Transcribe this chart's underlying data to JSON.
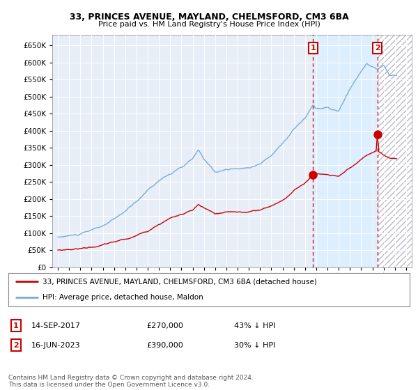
{
  "title1": "33, PRINCES AVENUE, MAYLAND, CHELMSFORD, CM3 6BA",
  "title2": "Price paid vs. HM Land Registry's House Price Index (HPI)",
  "legend_line1": "33, PRINCES AVENUE, MAYLAND, CHELMSFORD, CM3 6BA (detached house)",
  "legend_line2": "HPI: Average price, detached house, Maldon",
  "annotation1_date": "14-SEP-2017",
  "annotation1_price": "£270,000",
  "annotation1_note": "43% ↓ HPI",
  "annotation2_date": "16-JUN-2023",
  "annotation2_price": "£390,000",
  "annotation2_note": "30% ↓ HPI",
  "footer": "Contains HM Land Registry data © Crown copyright and database right 2024.\nThis data is licensed under the Open Government Licence v3.0.",
  "hpi_color": "#7aadd4",
  "price_color": "#cc0000",
  "annotation_color": "#cc0000",
  "shade_color": "#ddeeff",
  "plot_bg": "#e8eef8",
  "ylim": [
    0,
    680000
  ],
  "yticks": [
    0,
    50000,
    100000,
    150000,
    200000,
    250000,
    300000,
    350000,
    400000,
    450000,
    500000,
    550000,
    600000,
    650000
  ],
  "ann1_year": 2017.71,
  "ann2_year": 2023.45,
  "ann1_price": 270000,
  "ann2_price": 390000
}
